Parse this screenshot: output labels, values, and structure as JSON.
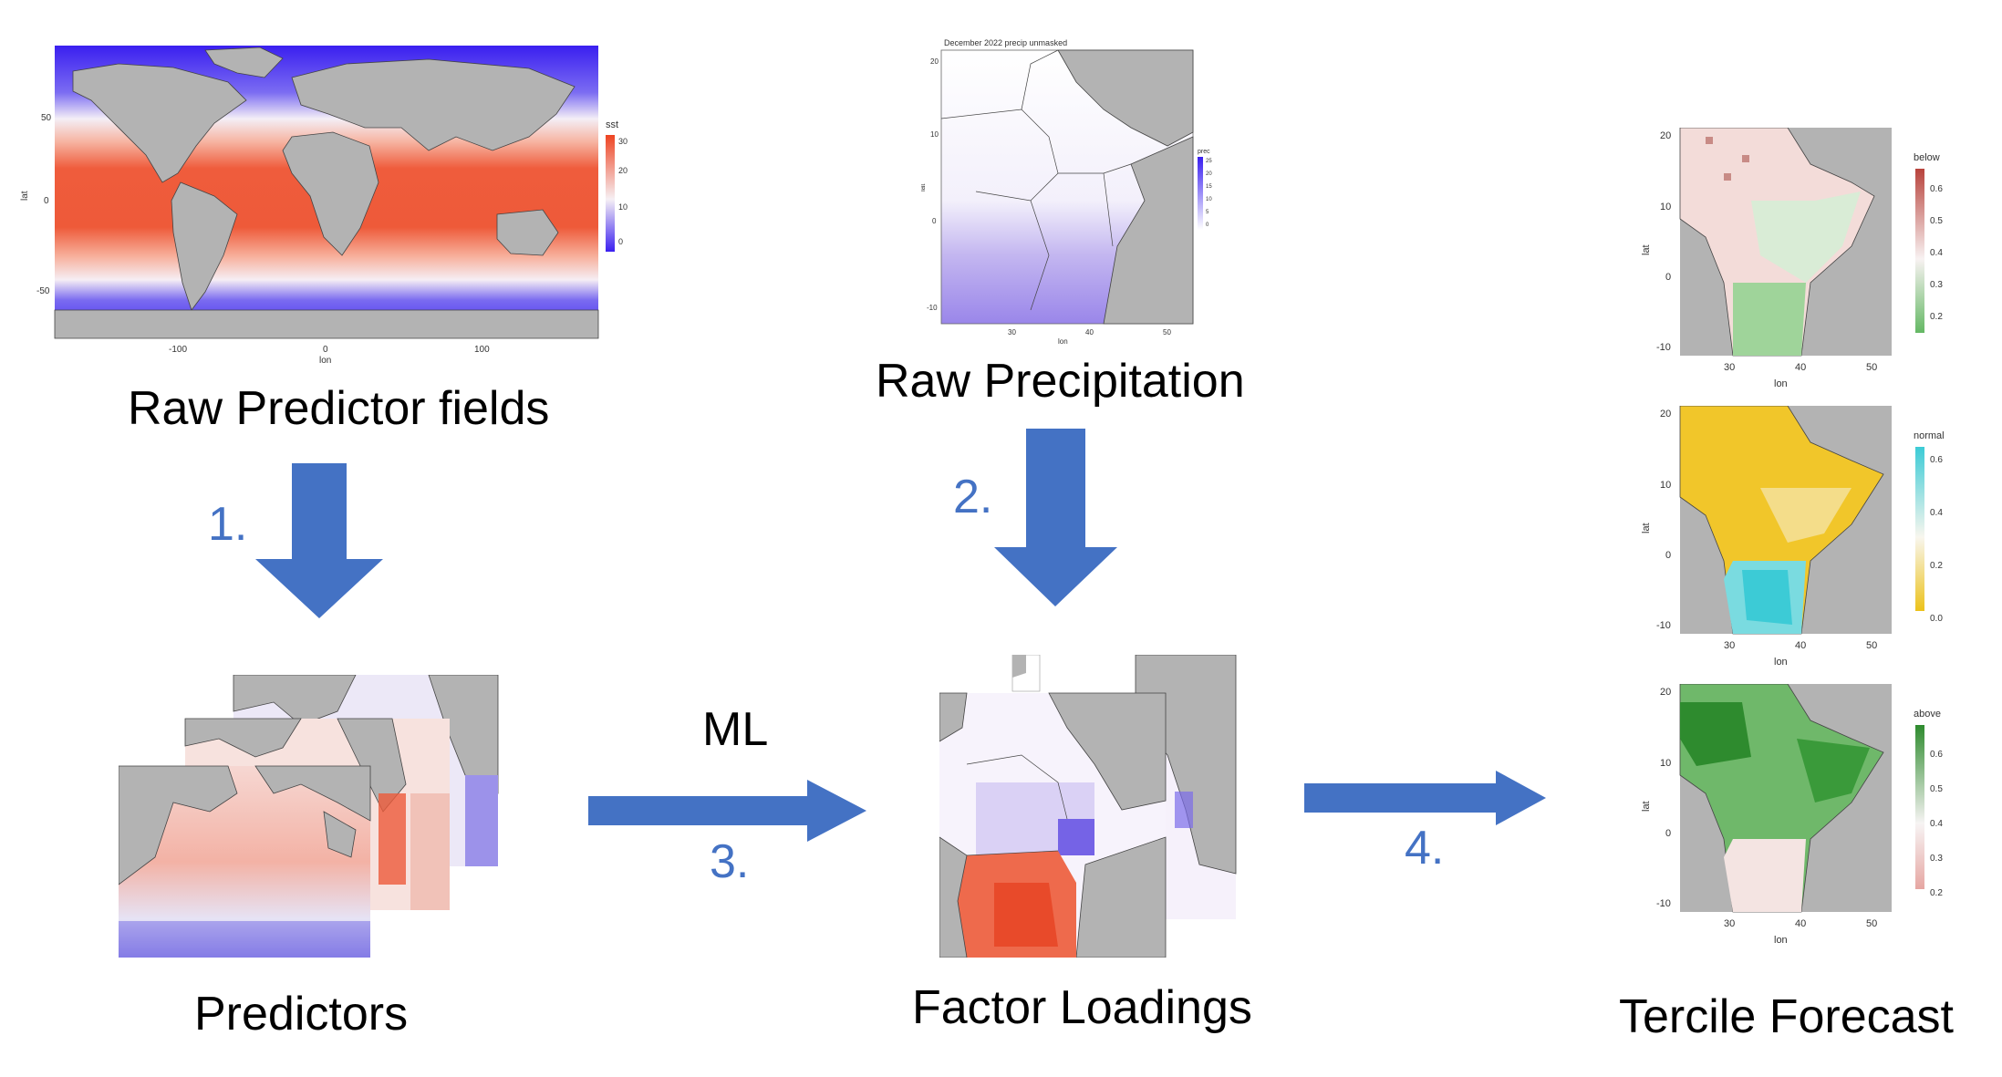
{
  "stages": {
    "raw_predictor": "Raw Predictor fields",
    "raw_precip": "Raw Precipitation",
    "predictors": "Predictors",
    "factor_loadings": "Factor Loadings",
    "tercile_forecast": "Tercile Forecast"
  },
  "steps": {
    "s1": "1.",
    "s2": "2.",
    "s3": "3.",
    "s4": "4.",
    "ml": "ML"
  },
  "sst_map": {
    "legend_title": "sst",
    "legend_ticks": [
      "30",
      "20",
      "10",
      "0"
    ],
    "lat_ticks": [
      "50",
      "0",
      "-50"
    ],
    "lon_ticks": [
      "-100",
      "0",
      "100"
    ],
    "xlabel": "lon",
    "ylabel": "lat"
  },
  "precip_map": {
    "title": "December 2022 precip unmasked",
    "legend_title": "prec",
    "legend_ticks": [
      "25",
      "20",
      "15",
      "10",
      "5",
      "0"
    ],
    "lat_ticks": [
      "20",
      "10",
      "0",
      "-10"
    ],
    "lon_ticks": [
      "30",
      "40",
      "50"
    ],
    "xlabel": "lon",
    "ylabel": "lat"
  },
  "tercile_maps": [
    {
      "legend_title": "below",
      "legend_ticks": [
        "0.6",
        "0.5",
        "0.4",
        "0.3",
        "0.2"
      ],
      "lat_ticks": [
        "20",
        "10",
        "0",
        "-10"
      ],
      "lon_ticks": [
        "30",
        "40",
        "50"
      ],
      "xlabel": "lon",
      "ylabel": "lat"
    },
    {
      "legend_title": "normal",
      "legend_ticks": [
        "0.6",
        "0.4",
        "0.2",
        "0.0"
      ],
      "lat_ticks": [
        "20",
        "10",
        "0",
        "-10"
      ],
      "lon_ticks": [
        "30",
        "40",
        "50"
      ],
      "xlabel": "lon",
      "ylabel": "lat"
    },
    {
      "legend_title": "above",
      "legend_ticks": [
        "0.6",
        "0.5",
        "0.4",
        "0.3",
        "0.2"
      ],
      "lat_ticks": [
        "20",
        "10",
        "0",
        "-10"
      ],
      "lon_ticks": [
        "30",
        "40",
        "50"
      ],
      "xlabel": "lon",
      "ylabel": "lat"
    }
  ],
  "colors": {
    "arrow": "#4472C4",
    "step_text": "#4472C4",
    "land": "#b3b3b3",
    "warm": "#ee5533",
    "cold": "#3322ee",
    "below": "#b8433c",
    "normal_high": "#3ccbd6",
    "normal_low": "#ecc21a",
    "above": "#2e8b2e"
  }
}
